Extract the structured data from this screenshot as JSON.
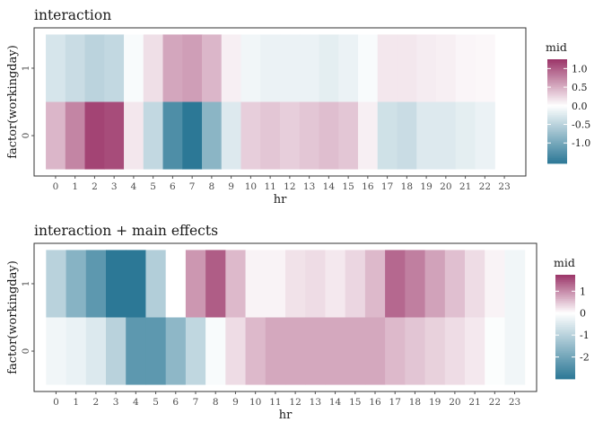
{
  "colors": {
    "low": "#2c7896",
    "mid": "#ffffff",
    "high": "#9b3468",
    "panel_border": "#333333",
    "tick_color": "#4d4d4d"
  },
  "chart_data": [
    {
      "type": "heatmap",
      "title": "interaction",
      "xlabel": "hr",
      "ylabel": "factor(workingday)",
      "x": [
        "0",
        "1",
        "2",
        "3",
        "4",
        "5",
        "6",
        "7",
        "8",
        "9",
        "10",
        "11",
        "12",
        "13",
        "14",
        "15",
        "16",
        "17",
        "18",
        "19",
        "20",
        "21",
        "22",
        "23"
      ],
      "y": [
        "0",
        "1"
      ],
      "series": [
        {
          "name": "0",
          "values": [
            0.45,
            0.75,
            1.15,
            1.1,
            0.15,
            -0.45,
            -1.3,
            -1.55,
            -0.85,
            -0.25,
            0.3,
            0.35,
            0.3,
            0.35,
            0.4,
            0.35,
            0.1,
            -0.35,
            -0.4,
            -0.25,
            -0.25,
            -0.2,
            -0.15,
            null
          ]
        },
        {
          "name": "1",
          "values": [
            -0.3,
            -0.4,
            -0.5,
            -0.45,
            -0.05,
            0.2,
            0.55,
            0.6,
            0.45,
            0.1,
            -0.1,
            -0.15,
            -0.15,
            -0.15,
            -0.2,
            -0.15,
            -0.05,
            0.15,
            0.15,
            0.12,
            0.1,
            0.06,
            0.05,
            null
          ]
        }
      ],
      "legend": {
        "title": "mid",
        "ticks": [
          1.0,
          0.5,
          0.0,
          -0.5,
          -1.0
        ],
        "tick_labels": [
          "1.0",
          "0.5",
          "0.0",
          "-0.5",
          "-1.0"
        ],
        "range": [
          -1.55,
          1.25
        ],
        "placement": "right"
      },
      "grid": false
    },
    {
      "type": "heatmap",
      "title": "interaction + main effects",
      "xlabel": "hr",
      "ylabel": "factor(workingday)",
      "x": [
        "0",
        "1",
        "2",
        "3",
        "4",
        "5",
        "6",
        "7",
        "8",
        "9",
        "10",
        "11",
        "12",
        "13",
        "14",
        "15",
        "16",
        "17",
        "18",
        "19",
        "20",
        "21",
        "22",
        "23"
      ],
      "y": [
        "0",
        "1"
      ],
      "series": [
        {
          "name": "0",
          "values": [
            -0.2,
            -0.3,
            -0.5,
            -1.0,
            -2.3,
            -2.3,
            -1.6,
            -0.9,
            -0.1,
            0.3,
            0.6,
            0.75,
            0.75,
            0.75,
            0.75,
            0.75,
            0.75,
            0.6,
            0.5,
            0.4,
            0.3,
            0.2,
            -0.05,
            -0.2
          ]
        },
        {
          "name": "1",
          "values": [
            -1.0,
            -1.7,
            -2.3,
            -3.0,
            -3.0,
            -1.1,
            0.0,
            0.9,
            1.4,
            0.6,
            0.1,
            0.1,
            0.25,
            0.3,
            0.2,
            0.35,
            0.6,
            1.3,
            1.1,
            0.8,
            0.55,
            0.3,
            0.1,
            -0.2
          ]
        }
      ],
      "legend": {
        "title": "mid",
        "ticks": [
          1,
          0,
          -1,
          -2
        ],
        "tick_labels": [
          "1",
          "0",
          "-1",
          "-2"
        ],
        "range": [
          -3.0,
          1.75
        ],
        "placement": "right"
      },
      "grid": false
    }
  ]
}
